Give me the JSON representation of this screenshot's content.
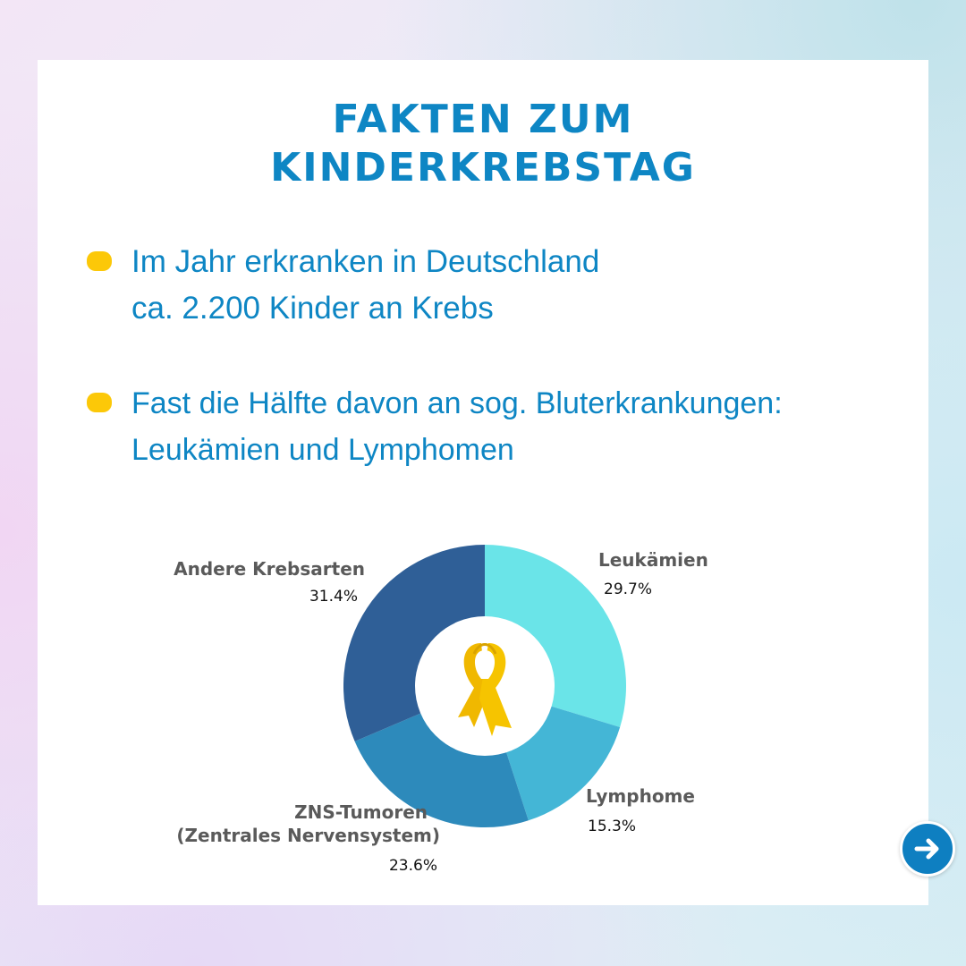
{
  "title_lines": [
    "FAKTEN ZUM",
    "KINDERKREBSTAG"
  ],
  "bullets": [
    {
      "text": "Im Jahr erkranken in Deutschland\nca. 2.200 Kinder an Krebs"
    },
    {
      "text": "Fast die Hälfte davon an sog. Bluterkrankungen:\nLeukämien und Lymphomen"
    }
  ],
  "colors": {
    "accent": "#0e86c4",
    "bullet": "#fcc808",
    "ribbon": "#f6c400"
  },
  "icons": {
    "center": "yellow-ribbon-icon",
    "next": "arrow-right-icon"
  },
  "chart_data": {
    "type": "pie",
    "variant": "donut",
    "categories": [
      "Leukämien",
      "Lymphome",
      "ZNS-Tumoren\n(Zentrales Nervensystem)",
      "Andere Krebsarten"
    ],
    "values": [
      29.7,
      15.3,
      23.6,
      31.4
    ],
    "value_labels": [
      "29.7%",
      "15.3%",
      "23.6%",
      "31.4%"
    ],
    "colors": [
      "#6ae4e8",
      "#44b6d6",
      "#2d8abb",
      "#2f5f97"
    ]
  }
}
